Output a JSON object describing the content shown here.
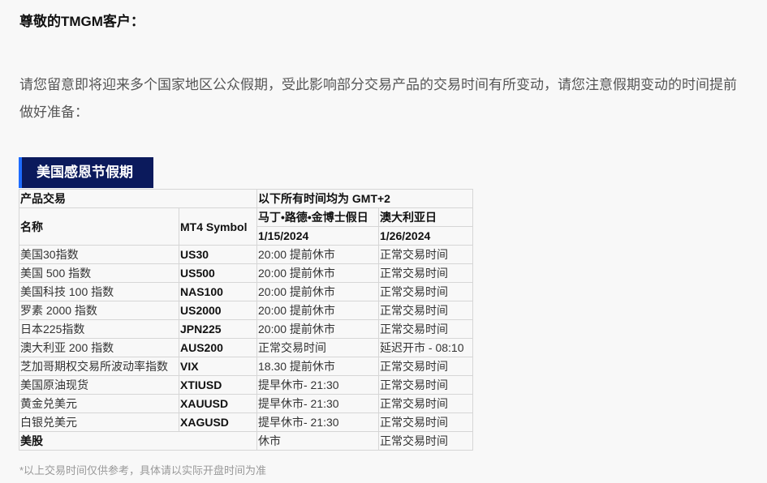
{
  "greeting": "尊敬的TMGM客户：",
  "intro": "请您留意即将迎来多个国家地区公众假期，受此影响部分交易产品的交易时间有所变动，请您注意假期变动的时间提前做好准备：",
  "banner": "美国感恩节假期",
  "table": {
    "group_header": "产品交易",
    "timezone_header": "以下所有时间均为 GMT+2",
    "col_name": "名称",
    "col_symbol": "MT4 Symbol",
    "holiday1": "马丁•路德•金博士假日",
    "holiday2": "澳大利亚日",
    "date1": "1/15/2024",
    "date2": "1/26/2024",
    "rows": [
      {
        "name": "美国30指数",
        "symbol": "US30",
        "d1": "20:00 提前休市",
        "d2": "正常交易时间"
      },
      {
        "name": "美国 500 指数",
        "symbol": "US500",
        "d1": "20:00 提前休市",
        "d2": "正常交易时间"
      },
      {
        "name": "美国科技 100 指数",
        "symbol": "NAS100",
        "d1": "20:00 提前休市",
        "d2": "正常交易时间"
      },
      {
        "name": "罗素 2000 指数",
        "symbol": "US2000",
        "d1": "20:00 提前休市",
        "d2": "正常交易时间"
      },
      {
        "name": "日本225指数",
        "symbol": "JPN225",
        "d1": "20:00 提前休市",
        "d2": "正常交易时间"
      },
      {
        "name": "澳大利亚 200 指数",
        "symbol": "AUS200",
        "d1": "正常交易时间",
        "d2": "延迟开市 - 08:10"
      },
      {
        "name": "芝加哥期权交易所波动率指数",
        "symbol": "VIX",
        "d1": "18.30 提前休市",
        "d2": "正常交易时间"
      },
      {
        "name": "美国原油现货",
        "symbol": "XTIUSD",
        "d1": "提早休市- 21:30",
        "d2": "正常交易时间"
      },
      {
        "name": "黄金兑美元",
        "symbol": "XAUUSD",
        "d1": "提早休市- 21:30",
        "d2": "正常交易时间"
      },
      {
        "name": "白银兑美元",
        "symbol": "XAGUSD",
        "d1": "提早休市- 21:30",
        "d2": "正常交易时间"
      }
    ],
    "last_row": {
      "name": "美股",
      "d1": "休市",
      "d2": "正常交易时间"
    }
  },
  "note": "*以上交易时间仅供参考，具体请以实际开盘时间为准"
}
